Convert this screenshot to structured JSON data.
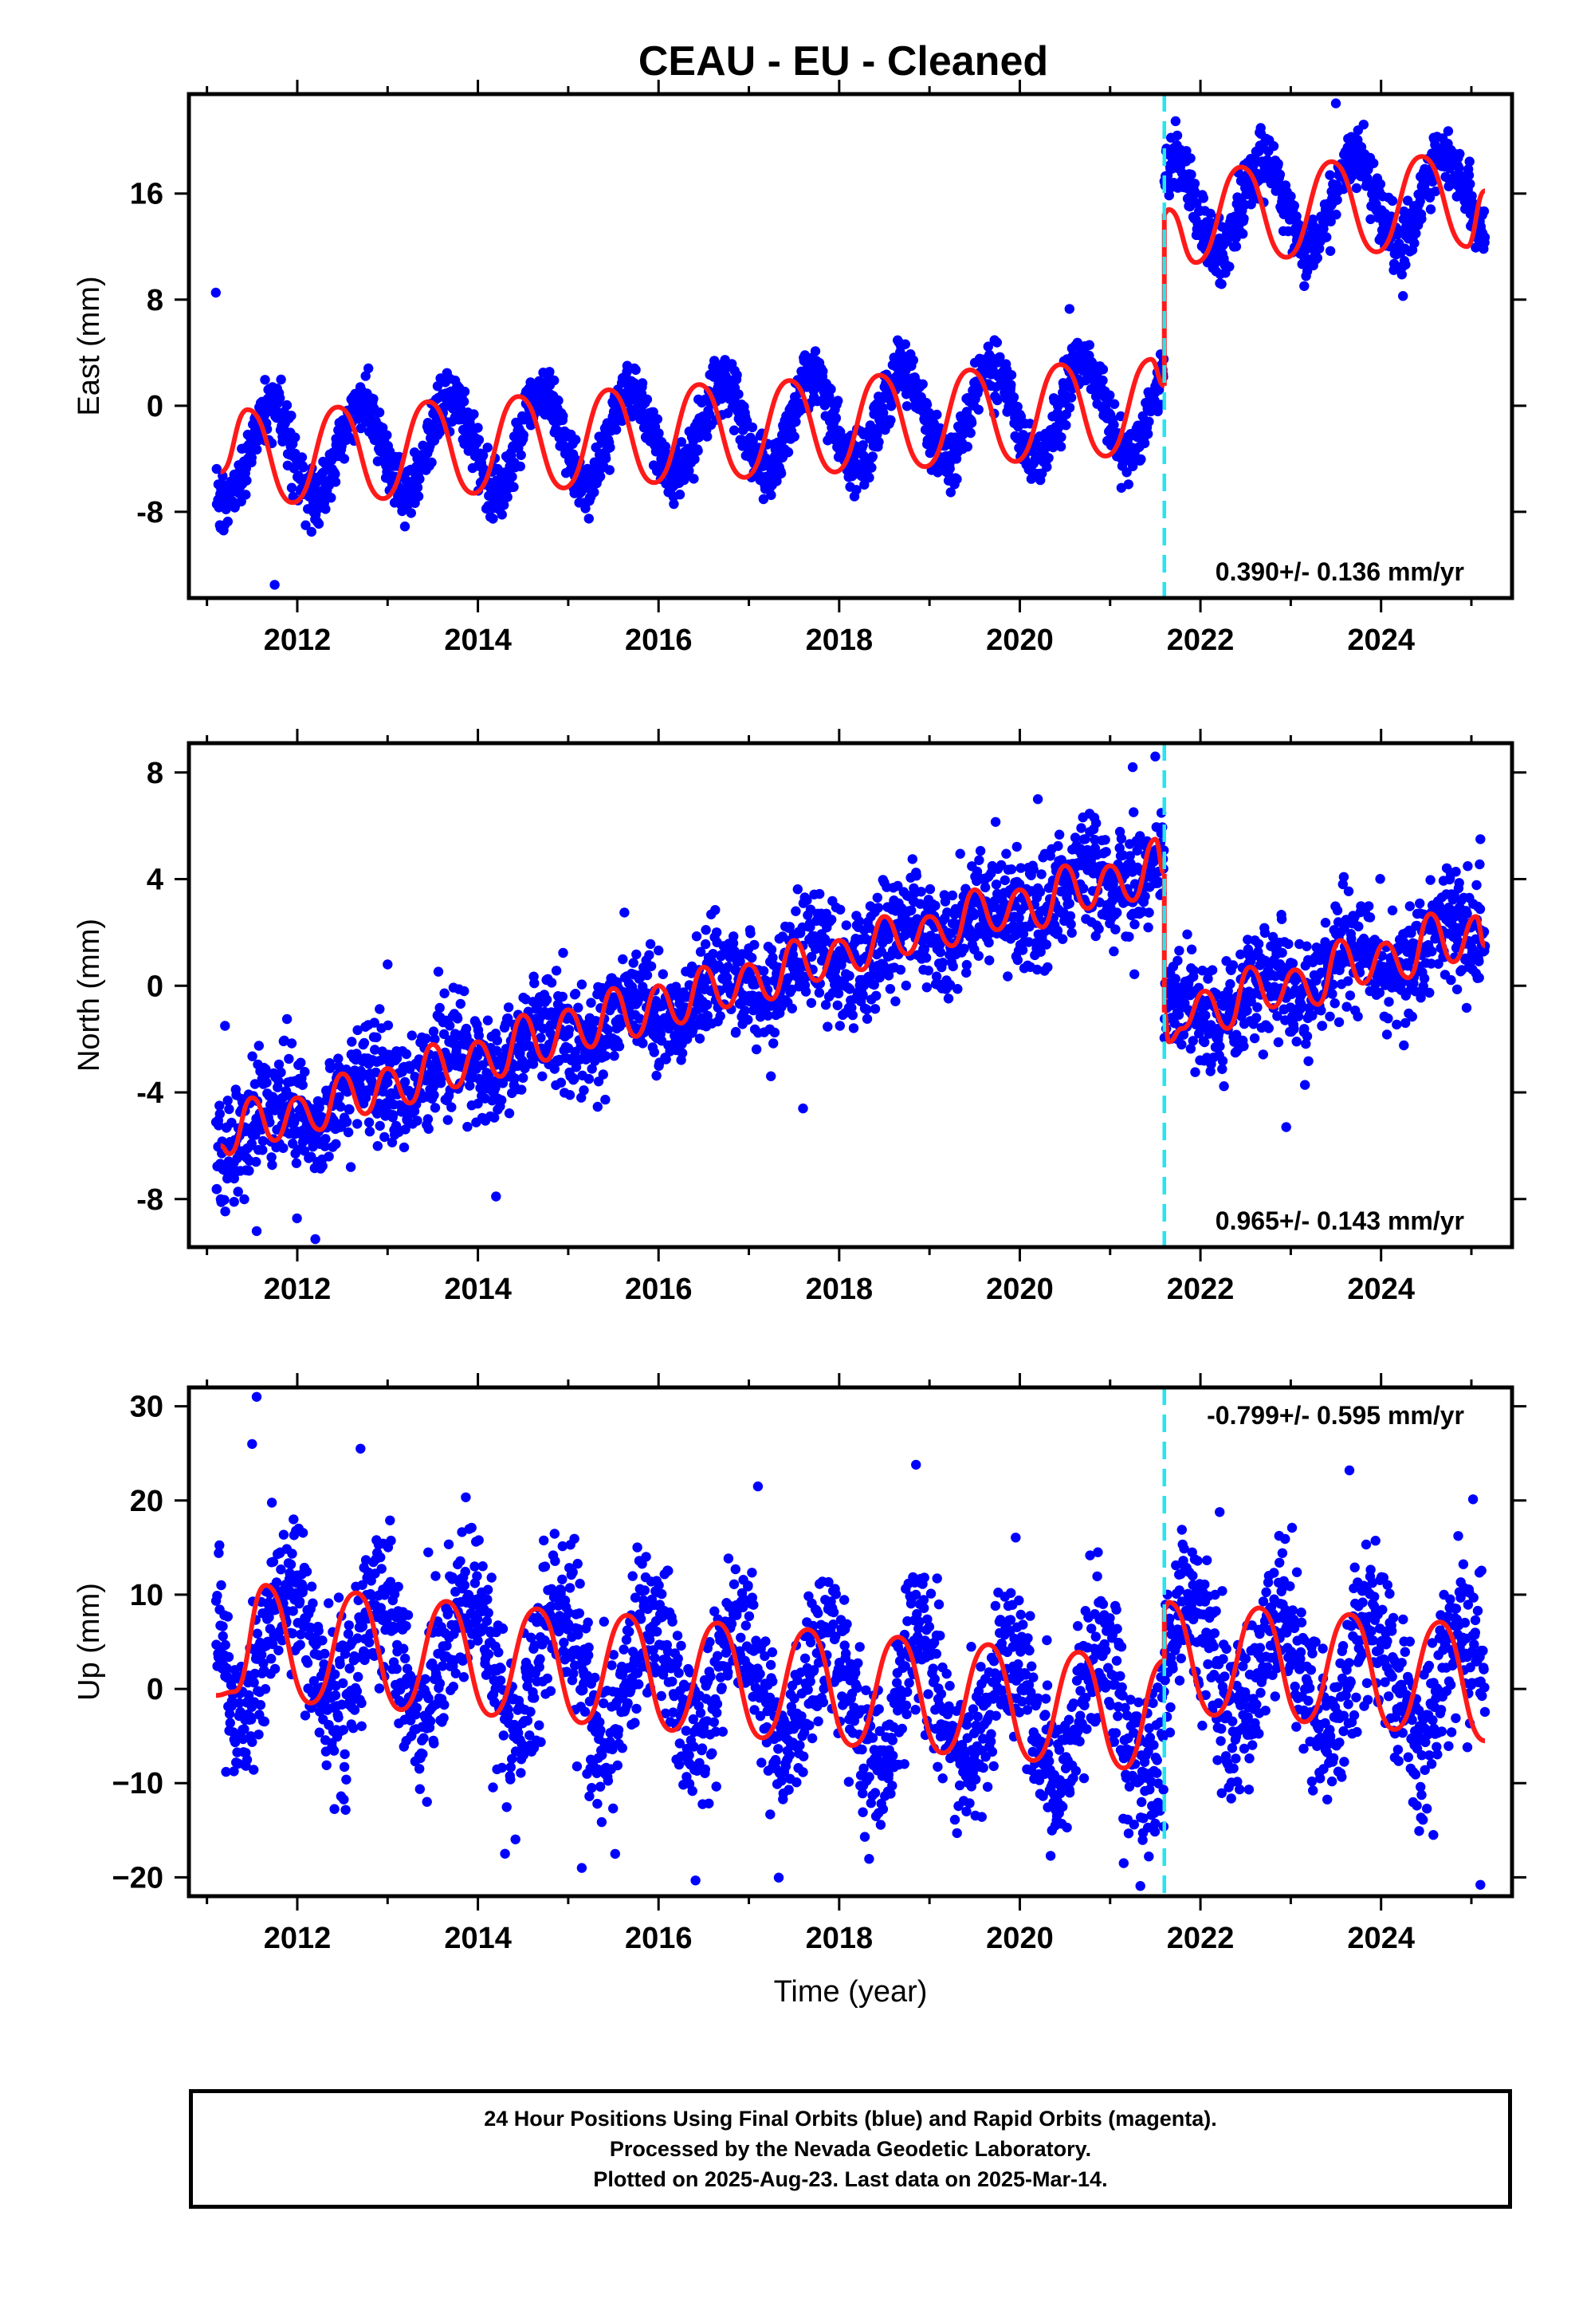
{
  "title": "CEAU  - EU - Cleaned",
  "colors": {
    "points": "#0000ff",
    "model": "#ff1a1a",
    "offset_line": "#22e6f0",
    "frame": "#000000"
  },
  "chart_data": [
    {
      "type": "scatter",
      "component": "east",
      "ylabel": "East (mm)",
      "xlabel": "",
      "xlim": [
        2010.8,
        2025.45
      ],
      "ylim": [
        -14.5,
        23.5
      ],
      "xticks": [
        2012,
        2014,
        2016,
        2018,
        2020,
        2022,
        2024
      ],
      "xtick_labels": [
        "2012",
        "2014",
        "2016",
        "2018",
        "2020",
        "2022",
        "2024"
      ],
      "yticks": [
        -8,
        0,
        8,
        16
      ],
      "ytick_labels": [
        "-8",
        "0",
        "8",
        "16"
      ],
      "velocity_label": "0.390+/- 0.136 mm/yr",
      "velocity_position": "bottom-right",
      "offset_epoch": 2021.6,
      "model": {
        "series_segments": [
          {
            "x": [
              2011.15,
              2011.45,
              2011.95,
              2012.45,
              2012.95,
              2013.45,
              2013.95,
              2014.45,
              2014.95,
              2015.45,
              2015.95,
              2016.45,
              2016.95,
              2017.45,
              2017.95,
              2018.45,
              2018.95,
              2019.45,
              2019.95,
              2020.45,
              2020.95,
              2021.45,
              2021.6
            ],
            "y": [
              -5.0,
              -0.3,
              -7.3,
              -0.1,
              -7.0,
              0.3,
              -6.6,
              0.7,
              -6.2,
              1.2,
              -5.8,
              1.6,
              -5.4,
              1.9,
              -5.0,
              2.3,
              -4.6,
              2.7,
              -4.2,
              3.1,
              -3.8,
              3.5,
              1.5
            ]
          },
          {
            "x": [
              2021.6,
              2021.65,
              2021.95,
              2022.45,
              2022.95,
              2023.45,
              2023.95,
              2024.45,
              2024.95,
              2025.15
            ],
            "y": [
              14.5,
              14.8,
              10.8,
              18.0,
              11.2,
              18.4,
              11.6,
              18.8,
              12.0,
              16.2
            ]
          }
        ]
      },
      "points_model": {
        "start": 2011.1,
        "end": 2025.15,
        "count": 2700,
        "segments": [
          {
            "from": 2011.1,
            "to": 2021.6,
            "offset": -3.9,
            "trend": 0.39,
            "t0": 2011.1,
            "amplitude": 3.5,
            "phase_year_fraction": 0.45,
            "noise": 1.1
          },
          {
            "from": 2021.6,
            "to": 2025.15,
            "offset": 14.6,
            "trend": 0.39,
            "t0": 2021.6,
            "amplitude": 3.4,
            "phase_year_fraction": 0.45,
            "noise": 1.1
          }
        ],
        "outliers": [
          [
            2011.75,
            -13.5
          ],
          [
            2020.55,
            7.3
          ],
          [
            2023.5,
            22.8
          ]
        ]
      }
    },
    {
      "type": "scatter",
      "component": "north",
      "ylabel": "North (mm)",
      "xlabel": "",
      "xlim": [
        2010.8,
        2025.45
      ],
      "ylim": [
        -9.8,
        9.1
      ],
      "xticks": [
        2012,
        2014,
        2016,
        2018,
        2020,
        2022,
        2024
      ],
      "xtick_labels": [
        "2012",
        "2014",
        "2016",
        "2018",
        "2020",
        "2022",
        "2024"
      ],
      "yticks": [
        -8,
        -4,
        0,
        4,
        8
      ],
      "ytick_labels": [
        "-8",
        "-4",
        "0",
        "4",
        "8"
      ],
      "velocity_label": "0.965+/- 0.143 mm/yr",
      "velocity_position": "bottom-right",
      "offset_epoch": 2021.6,
      "model": {
        "series_segments": [
          {
            "x": [
              2011.15,
              2011.25,
              2011.5,
              2011.75,
              2012.0,
              2012.25,
              2012.5,
              2012.75,
              2013.0,
              2013.25,
              2013.5,
              2013.75,
              2014.0,
              2014.25,
              2014.5,
              2014.75,
              2015.0,
              2015.25,
              2015.5,
              2015.75,
              2016.0,
              2016.25,
              2016.5,
              2016.75,
              2017.0,
              2017.25,
              2017.5,
              2017.75,
              2018.0,
              2018.25,
              2018.5,
              2018.75,
              2019.0,
              2019.25,
              2019.5,
              2019.75,
              2020.0,
              2020.25,
              2020.5,
              2020.75,
              2021.0,
              2021.25,
              2021.5,
              2021.6
            ],
            "y": [
              -6.0,
              -6.3,
              -4.2,
              -5.8,
              -4.2,
              -5.4,
              -3.3,
              -4.8,
              -3.1,
              -4.4,
              -2.2,
              -3.8,
              -2.1,
              -3.4,
              -1.1,
              -2.8,
              -0.9,
              -2.3,
              -0.1,
              -1.9,
              0.0,
              -1.4,
              0.7,
              -0.8,
              0.8,
              -0.5,
              1.7,
              0.2,
              1.7,
              0.6,
              2.6,
              1.2,
              2.6,
              1.5,
              3.6,
              2.1,
              3.6,
              2.2,
              4.5,
              2.9,
              4.5,
              3.2,
              5.5,
              4.2
            ]
          },
          {
            "x": [
              2021.6,
              2021.65,
              2021.8,
              2022.05,
              2022.3,
              2022.55,
              2022.8,
              2023.05,
              2023.3,
              2023.55,
              2023.8,
              2024.05,
              2024.3,
              2024.55,
              2024.8,
              2025.05,
              2025.15
            ],
            "y": [
              -1.0,
              -2.1,
              -1.6,
              -0.2,
              -1.6,
              0.7,
              -0.8,
              0.6,
              -0.7,
              1.7,
              0.1,
              1.6,
              0.3,
              2.7,
              0.9,
              2.6,
              1.5
            ]
          }
        ]
      },
      "points_model": {
        "start": 2011.1,
        "end": 2025.15,
        "count": 2700,
        "segments": [
          {
            "from": 2011.1,
            "to": 2021.6,
            "offset": -5.6,
            "trend": 0.965,
            "t0": 2011.1,
            "amplitude": 0.7,
            "phase_year_fraction": 0.45,
            "noise": 1.05
          },
          {
            "from": 2021.6,
            "to": 2025.15,
            "offset": -1.3,
            "trend": 0.965,
            "t0": 2021.6,
            "amplitude": 0.7,
            "phase_year_fraction": 0.45,
            "noise": 1.05
          }
        ],
        "outliers": [
          [
            2011.2,
            -1.5
          ],
          [
            2011.3,
            -8.1
          ],
          [
            2011.55,
            -9.2
          ],
          [
            2012.2,
            -9.5
          ],
          [
            2013.0,
            0.8
          ],
          [
            2014.2,
            -7.9
          ],
          [
            2017.6,
            -4.6
          ],
          [
            2020.2,
            7.0
          ],
          [
            2021.25,
            8.2
          ],
          [
            2021.5,
            8.6
          ],
          [
            2022.95,
            -5.3
          ],
          [
            2025.1,
            5.5
          ]
        ]
      }
    },
    {
      "type": "scatter",
      "component": "up",
      "ylabel": "Up (mm)",
      "xlabel": "Time (year)",
      "xlim": [
        2010.8,
        2025.45
      ],
      "ylim": [
        -22,
        32
      ],
      "xticks": [
        2012,
        2014,
        2016,
        2018,
        2020,
        2022,
        2024
      ],
      "xtick_labels": [
        "2012",
        "2014",
        "2016",
        "2018",
        "2020",
        "2022",
        "2024"
      ],
      "yticks": [
        -20,
        -10,
        0,
        10,
        20,
        30
      ],
      "ytick_labels": [
        "−20",
        "−10",
        "0",
        "10",
        "20",
        "30"
      ],
      "velocity_label": "-0.799+/- 0.595 mm/yr",
      "velocity_position": "top-right",
      "offset_epoch": 2021.6,
      "model": {
        "series_segments": [
          {
            "x": [
              2011.1,
              2011.3,
              2011.65,
              2012.15,
              2012.65,
              2013.15,
              2013.65,
              2014.15,
              2014.65,
              2015.15,
              2015.65,
              2016.15,
              2016.65,
              2017.15,
              2017.65,
              2018.15,
              2018.65,
              2019.15,
              2019.65,
              2020.15,
              2020.65,
              2021.15,
              2021.6
            ],
            "y": [
              -0.7,
              -0.3,
              11.0,
              -1.5,
              10.2,
              -2.2,
              9.3,
              -2.8,
              8.5,
              -3.6,
              7.8,
              -4.4,
              7.0,
              -5.2,
              6.3,
              -6.0,
              5.5,
              -6.8,
              4.7,
              -7.6,
              3.9,
              -8.4,
              3.0
            ]
          },
          {
            "x": [
              2021.6,
              2021.65,
              2022.15,
              2022.65,
              2023.15,
              2023.65,
              2024.15,
              2024.65,
              2025.15
            ],
            "y": [
              8.5,
              9.2,
              -2.8,
              8.6,
              -3.5,
              7.9,
              -4.3,
              7.1,
              -5.5
            ]
          }
        ]
      },
      "points_model": {
        "start": 2011.1,
        "end": 2025.15,
        "count": 2700,
        "segments": [
          {
            "from": 2011.1,
            "to": 2021.6,
            "offset": 5.0,
            "trend": -0.8,
            "t0": 2011.1,
            "amplitude": 6.5,
            "phase_year_fraction": 0.65,
            "noise": 4.2
          },
          {
            "from": 2021.6,
            "to": 2025.15,
            "offset": 3.0,
            "trend": -0.8,
            "t0": 2021.6,
            "amplitude": 6.0,
            "phase_year_fraction": 0.65,
            "noise": 4.2
          }
        ],
        "outliers": [
          [
            2011.55,
            31.0
          ],
          [
            2011.5,
            26.0
          ],
          [
            2012.7,
            25.5
          ],
          [
            2013.45,
            14.5
          ],
          [
            2014.3,
            -17.5
          ],
          [
            2015.15,
            -19.0
          ],
          [
            2017.1,
            21.5
          ],
          [
            2018.85,
            23.8
          ],
          [
            2021.15,
            -18.5
          ],
          [
            2023.65,
            23.2
          ],
          [
            2025.1,
            -20.8
          ]
        ]
      }
    }
  ],
  "footer": {
    "line1": "24 Hour Positions Using Final Orbits (blue) and Rapid Orbits (magenta).",
    "line2": "Processed by the Nevada Geodetic Laboratory.",
    "line3": "Plotted on 2025-Aug-23. Last data on 2025-Mar-14."
  }
}
